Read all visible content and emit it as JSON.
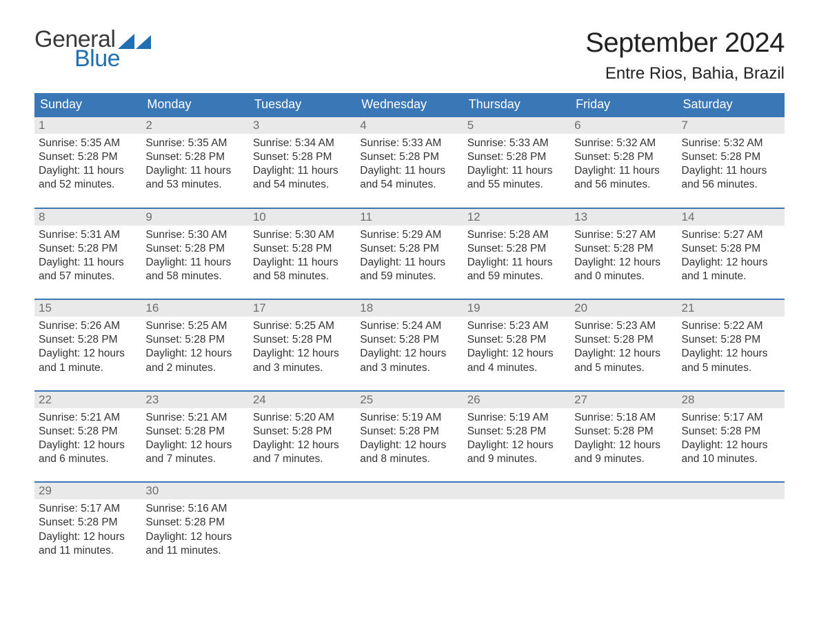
{
  "logo": {
    "text1": "General",
    "text2": "Blue",
    "flag_color": "#1f6fb2"
  },
  "title": "September 2024",
  "location": "Entre Rios, Bahia, Brazil",
  "colors": {
    "header_bg": "#3a77b7",
    "header_text": "#ffffff",
    "week_border": "#3a77b7",
    "daynum_bg": "#e9e9e9",
    "daynum_text": "#6d6d6d",
    "body_text": "#333333",
    "background": "#ffffff"
  },
  "layout": {
    "columns": 7,
    "rows": 5,
    "start_weekday": "Sunday"
  },
  "weekdays": [
    "Sunday",
    "Monday",
    "Tuesday",
    "Wednesday",
    "Thursday",
    "Friday",
    "Saturday"
  ],
  "days": [
    {
      "n": 1,
      "sunrise": "5:35 AM",
      "sunset": "5:28 PM",
      "daylight": "11 hours and 52 minutes."
    },
    {
      "n": 2,
      "sunrise": "5:35 AM",
      "sunset": "5:28 PM",
      "daylight": "11 hours and 53 minutes."
    },
    {
      "n": 3,
      "sunrise": "5:34 AM",
      "sunset": "5:28 PM",
      "daylight": "11 hours and 54 minutes."
    },
    {
      "n": 4,
      "sunrise": "5:33 AM",
      "sunset": "5:28 PM",
      "daylight": "11 hours and 54 minutes."
    },
    {
      "n": 5,
      "sunrise": "5:33 AM",
      "sunset": "5:28 PM",
      "daylight": "11 hours and 55 minutes."
    },
    {
      "n": 6,
      "sunrise": "5:32 AM",
      "sunset": "5:28 PM",
      "daylight": "11 hours and 56 minutes."
    },
    {
      "n": 7,
      "sunrise": "5:32 AM",
      "sunset": "5:28 PM",
      "daylight": "11 hours and 56 minutes."
    },
    {
      "n": 8,
      "sunrise": "5:31 AM",
      "sunset": "5:28 PM",
      "daylight": "11 hours and 57 minutes."
    },
    {
      "n": 9,
      "sunrise": "5:30 AM",
      "sunset": "5:28 PM",
      "daylight": "11 hours and 58 minutes."
    },
    {
      "n": 10,
      "sunrise": "5:30 AM",
      "sunset": "5:28 PM",
      "daylight": "11 hours and 58 minutes."
    },
    {
      "n": 11,
      "sunrise": "5:29 AM",
      "sunset": "5:28 PM",
      "daylight": "11 hours and 59 minutes."
    },
    {
      "n": 12,
      "sunrise": "5:28 AM",
      "sunset": "5:28 PM",
      "daylight": "11 hours and 59 minutes."
    },
    {
      "n": 13,
      "sunrise": "5:27 AM",
      "sunset": "5:28 PM",
      "daylight": "12 hours and 0 minutes."
    },
    {
      "n": 14,
      "sunrise": "5:27 AM",
      "sunset": "5:28 PM",
      "daylight": "12 hours and 1 minute."
    },
    {
      "n": 15,
      "sunrise": "5:26 AM",
      "sunset": "5:28 PM",
      "daylight": "12 hours and 1 minute."
    },
    {
      "n": 16,
      "sunrise": "5:25 AM",
      "sunset": "5:28 PM",
      "daylight": "12 hours and 2 minutes."
    },
    {
      "n": 17,
      "sunrise": "5:25 AM",
      "sunset": "5:28 PM",
      "daylight": "12 hours and 3 minutes."
    },
    {
      "n": 18,
      "sunrise": "5:24 AM",
      "sunset": "5:28 PM",
      "daylight": "12 hours and 3 minutes."
    },
    {
      "n": 19,
      "sunrise": "5:23 AM",
      "sunset": "5:28 PM",
      "daylight": "12 hours and 4 minutes."
    },
    {
      "n": 20,
      "sunrise": "5:23 AM",
      "sunset": "5:28 PM",
      "daylight": "12 hours and 5 minutes."
    },
    {
      "n": 21,
      "sunrise": "5:22 AM",
      "sunset": "5:28 PM",
      "daylight": "12 hours and 5 minutes."
    },
    {
      "n": 22,
      "sunrise": "5:21 AM",
      "sunset": "5:28 PM",
      "daylight": "12 hours and 6 minutes."
    },
    {
      "n": 23,
      "sunrise": "5:21 AM",
      "sunset": "5:28 PM",
      "daylight": "12 hours and 7 minutes."
    },
    {
      "n": 24,
      "sunrise": "5:20 AM",
      "sunset": "5:28 PM",
      "daylight": "12 hours and 7 minutes."
    },
    {
      "n": 25,
      "sunrise": "5:19 AM",
      "sunset": "5:28 PM",
      "daylight": "12 hours and 8 minutes."
    },
    {
      "n": 26,
      "sunrise": "5:19 AM",
      "sunset": "5:28 PM",
      "daylight": "12 hours and 9 minutes."
    },
    {
      "n": 27,
      "sunrise": "5:18 AM",
      "sunset": "5:28 PM",
      "daylight": "12 hours and 9 minutes."
    },
    {
      "n": 28,
      "sunrise": "5:17 AM",
      "sunset": "5:28 PM",
      "daylight": "12 hours and 10 minutes."
    },
    {
      "n": 29,
      "sunrise": "5:17 AM",
      "sunset": "5:28 PM",
      "daylight": "12 hours and 11 minutes."
    },
    {
      "n": 30,
      "sunrise": "5:16 AM",
      "sunset": "5:28 PM",
      "daylight": "12 hours and 11 minutes."
    }
  ],
  "labels": {
    "sunrise": "Sunrise:",
    "sunset": "Sunset:",
    "daylight": "Daylight:"
  },
  "fonts": {
    "title_size_pt": 30,
    "location_size_pt": 18,
    "weekday_size_pt": 14,
    "daynum_size_pt": 13,
    "body_size_pt": 12
  }
}
